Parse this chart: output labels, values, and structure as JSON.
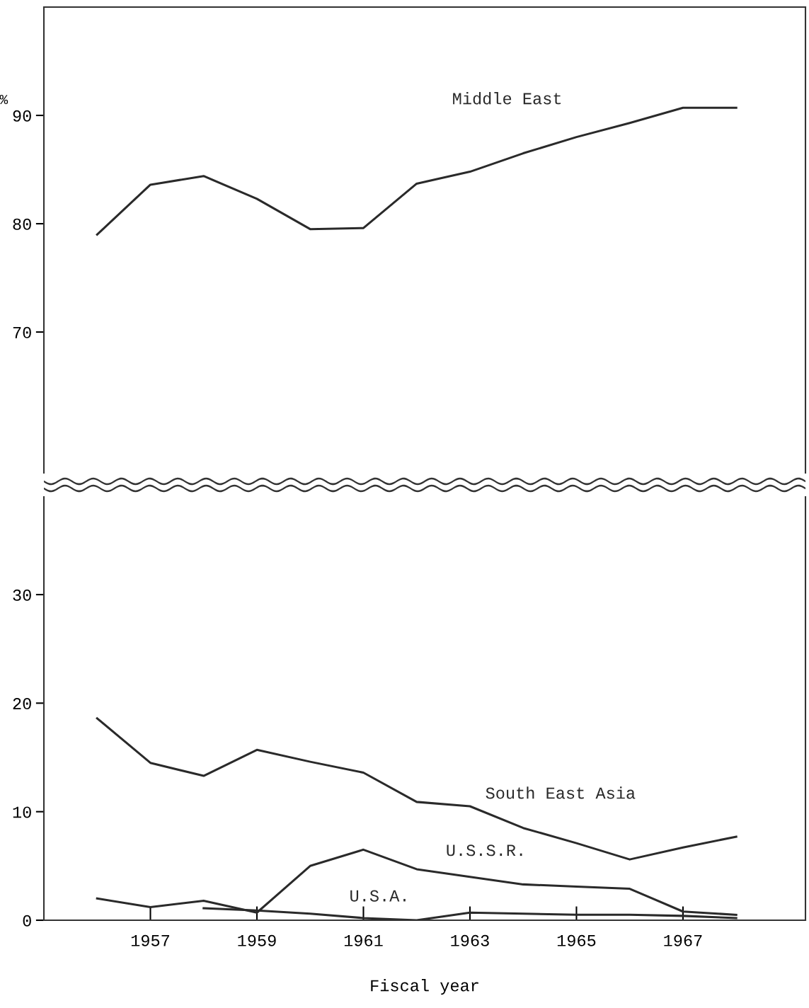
{
  "chart_data": [
    {
      "type": "line",
      "ylabel": "%",
      "xlim": [
        1955,
        1969.3
      ],
      "ylim": [
        57,
        100
      ],
      "yticks": [
        70,
        80,
        90
      ],
      "tick_labels": "y",
      "grid": false,
      "legend": false,
      "marker": "none",
      "line_style": "solid",
      "x": [
        1956,
        1957,
        1958,
        1959,
        1960,
        1961,
        1962,
        1963,
        1964,
        1965,
        1966,
        1967,
        1968
      ],
      "series": [
        {
          "name": "Middle East",
          "color": "#2a2a2a",
          "values": [
            79.0,
            83.6,
            84.4,
            82.3,
            79.5,
            79.6,
            83.7,
            84.8,
            86.5,
            88.0,
            89.3,
            90.7,
            90.7
          ]
        }
      ]
    },
    {
      "type": "line",
      "xlabel": "Fiscal year",
      "xlim": [
        1955,
        1969.3
      ],
      "xticks": [
        1957,
        1959,
        1961,
        1963,
        1965,
        1967
      ],
      "ylim": [
        0,
        39
      ],
      "yticks": [
        0,
        10,
        20,
        30
      ],
      "grid": false,
      "legend": false,
      "marker": "none",
      "line_style": "solid",
      "x": [
        1956,
        1957,
        1958,
        1959,
        1960,
        1961,
        1962,
        1963,
        1964,
        1965,
        1966,
        1967,
        1968
      ],
      "series": [
        {
          "name": "South East Asia",
          "color": "#2a2a2a",
          "values": [
            18.6,
            14.5,
            13.3,
            15.7,
            14.6,
            13.6,
            10.9,
            10.5,
            8.5,
            7.1,
            5.6,
            6.7,
            7.7
          ]
        },
        {
          "name": "U.S.S.R.",
          "color": "#2a2a2a",
          "values": [
            2.0,
            1.2,
            1.8,
            0.7,
            5.0,
            6.5,
            4.7,
            4.0,
            3.3,
            3.1,
            2.9,
            0.8,
            0.5
          ]
        },
        {
          "name": "U.S.A.",
          "color": "#2a2a2a",
          "values": [
            null,
            null,
            1.1,
            0.9,
            0.6,
            0.2,
            0.0,
            0.7,
            0.6,
            0.5,
            0.5,
            0.4,
            0.2
          ]
        }
      ]
    }
  ]
}
